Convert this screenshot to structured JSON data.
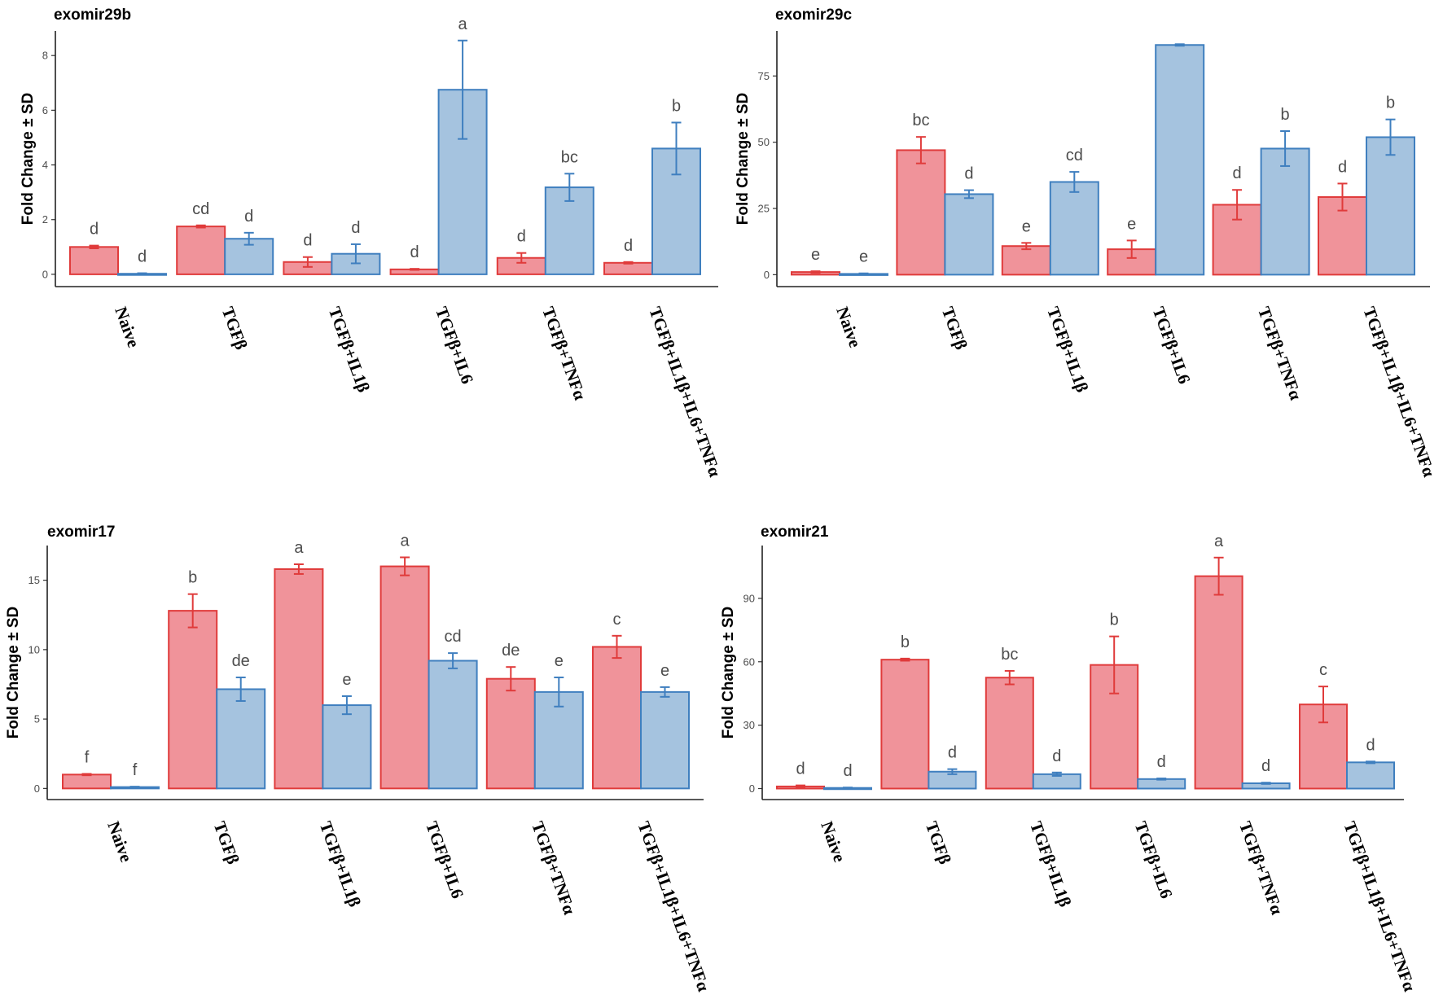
{
  "chart_data": [
    {
      "type": "bar",
      "title": "exomir29b",
      "ylabel": "Fold Change ± SD",
      "xlabel": "",
      "ylim": [
        -0.45,
        8.9
      ],
      "yticks": [
        "0",
        "2",
        "4",
        "6",
        "8"
      ],
      "ytick_values": [
        0,
        2,
        4,
        6,
        8
      ],
      "categories": [
        "Naive",
        "TGFβ",
        "TGFβ+IL1β",
        "TGFβ+IL6",
        "TGFβ+TNFα",
        "TGFβ+IL1β+IL6+TNFα"
      ],
      "series": [
        {
          "name": "series-red",
          "color": "#f0939a",
          "stroke": "#e03b3b",
          "values": [
            1.0,
            1.75,
            0.45,
            0.18,
            0.6,
            0.42
          ],
          "sd": [
            0.05,
            0.04,
            0.18,
            0.02,
            0.18,
            0.03
          ],
          "letters": [
            "d",
            "cd",
            "d",
            "d",
            "d",
            "d"
          ]
        },
        {
          "name": "series-blue",
          "color": "#a5c3df",
          "stroke": "#3f7fbf",
          "values": [
            0.02,
            1.3,
            0.75,
            6.75,
            3.18,
            4.6
          ],
          "sd": [
            0.02,
            0.22,
            0.35,
            1.8,
            0.5,
            0.95
          ],
          "letters": [
            "d",
            "d",
            "d",
            "a",
            "bc",
            "b"
          ]
        }
      ]
    },
    {
      "type": "bar",
      "title": "exomir29c",
      "ylabel": "Fold Change ± SD",
      "xlabel": "",
      "ylim": [
        -4.5,
        92
      ],
      "yticks": [
        "0",
        "25",
        "50",
        "75"
      ],
      "ytick_values": [
        0,
        25,
        50,
        75
      ],
      "categories": [
        "Naive",
        "TGFβ",
        "TGFβ+IL1β",
        "TGFβ+IL6",
        "TGFβ+TNFα",
        "TGFβ+IL1β+IL6+TNFα"
      ],
      "series": [
        {
          "name": "series-red",
          "color": "#f0939a",
          "stroke": "#e03b3b",
          "values": [
            1.0,
            47.0,
            10.8,
            9.6,
            26.4,
            29.3
          ],
          "sd": [
            0.3,
            5.0,
            1.2,
            3.3,
            5.6,
            5.1
          ],
          "letters": [
            "e",
            "bc",
            "e",
            "e",
            "d",
            "d"
          ]
        },
        {
          "name": "series-blue",
          "color": "#a5c3df",
          "stroke": "#3f7fbf",
          "values": [
            0.3,
            30.4,
            35.0,
            86.7,
            47.6,
            51.9
          ],
          "sd": [
            0.2,
            1.5,
            3.8,
            0.3,
            6.6,
            6.7
          ],
          "letters": [
            "e",
            "d",
            "cd",
            "",
            "b",
            "b"
          ]
        }
      ]
    },
    {
      "type": "bar",
      "title": "exomir17",
      "ylabel": "Fold Change ± SD",
      "xlabel": "",
      "ylim": [
        -0.8,
        17.5
      ],
      "yticks": [
        "0",
        "5",
        "10",
        "15"
      ],
      "ytick_values": [
        0,
        5,
        10,
        15
      ],
      "categories": [
        "Naive",
        "TGFβ",
        "TGFβ+IL1β",
        "TGFβ+IL6",
        "TGFβ+TNFα",
        "TGFβ+IL1β+IL6+TNFα"
      ],
      "series": [
        {
          "name": "series-red",
          "color": "#f0939a",
          "stroke": "#e03b3b",
          "values": [
            1.0,
            12.8,
            15.8,
            16.0,
            7.9,
            10.2
          ],
          "sd": [
            0.05,
            1.2,
            0.35,
            0.65,
            0.85,
            0.8
          ],
          "letters": [
            "f",
            "b",
            "a",
            "a",
            "de",
            "c"
          ]
        },
        {
          "name": "series-blue",
          "color": "#a5c3df",
          "stroke": "#3f7fbf",
          "values": [
            0.1,
            7.15,
            6.0,
            9.2,
            6.95,
            6.95
          ],
          "sd": [
            0.03,
            0.85,
            0.65,
            0.55,
            1.05,
            0.35
          ],
          "letters": [
            "f",
            "de",
            "e",
            "cd",
            "e",
            "e"
          ]
        }
      ]
    },
    {
      "type": "bar",
      "title": "exomir21",
      "ylabel": "Fold Change ± SD",
      "xlabel": "",
      "ylim": [
        -5.2,
        115
      ],
      "yticks": [
        "0",
        "30",
        "60",
        "90"
      ],
      "ytick_values": [
        0,
        30,
        60,
        90
      ],
      "categories": [
        "Naive",
        "TGFβ",
        "TGFβ+IL1β",
        "TGFβ+IL6",
        "TGFβ+TNFα",
        "TGFβ+IL1β+IL6+TNFα"
      ],
      "series": [
        {
          "name": "series-red",
          "color": "#f0939a",
          "stroke": "#e03b3b",
          "values": [
            1.0,
            61.0,
            52.5,
            58.5,
            100.5,
            39.8
          ],
          "sd": [
            0.5,
            0.5,
            3.2,
            13.5,
            8.8,
            8.5
          ],
          "letters": [
            "d",
            "b",
            "bc",
            "b",
            "a",
            "c"
          ]
        },
        {
          "name": "series-blue",
          "color": "#a5c3df",
          "stroke": "#3f7fbf",
          "values": [
            0.3,
            8.0,
            6.8,
            4.5,
            2.5,
            12.4
          ],
          "sd": [
            0.2,
            1.2,
            0.8,
            0.3,
            0.3,
            0.4
          ],
          "letters": [
            "d",
            "d",
            "d",
            "d",
            "d",
            "d"
          ]
        }
      ]
    }
  ]
}
